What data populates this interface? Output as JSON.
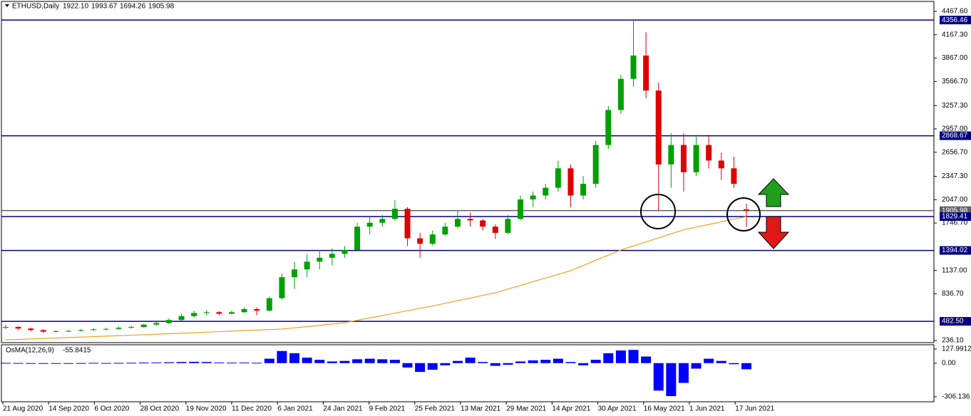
{
  "chart_data": {
    "type": "candlestick",
    "symbol": "ETHUSD,Daily",
    "header_values": [
      "1922.10",
      "1993.67",
      "1694.26",
      "1905.98"
    ],
    "ylim": [
      236.1,
      4467.6
    ],
    "yticks": [
      {
        "value": 4467.6,
        "label": "4467.60"
      },
      {
        "value": 4167.3,
        "label": "4167.30"
      },
      {
        "value": 3867,
        "label": "3867.00"
      },
      {
        "value": 3566.7,
        "label": "3566.70"
      },
      {
        "value": 3257.3,
        "label": "3257.30"
      },
      {
        "value": 2957,
        "label": "2957.00"
      },
      {
        "value": 2656.7,
        "label": "2656.70"
      },
      {
        "value": 2347.3,
        "label": "2347.30"
      },
      {
        "value": 2047,
        "label": "2047.00"
      },
      {
        "value": 1746.7,
        "label": "1746.70"
      },
      {
        "value": 1137,
        "label": "1137.00"
      },
      {
        "value": 836.7,
        "label": "836.70"
      },
      {
        "value": 236.1,
        "label": "236.10"
      }
    ],
    "levels": [
      {
        "value": 4356.46,
        "label": "4356.46",
        "color": "#000080"
      },
      {
        "value": 2868.67,
        "label": "2868.67",
        "color": "#000080"
      },
      {
        "value": 1905.98,
        "label": "1905.98",
        "color": "#606060"
      },
      {
        "value": 1829.41,
        "label": "1829.41",
        "color": "#000080"
      },
      {
        "value": 1394.02,
        "label": "1394.02",
        "color": "#000080"
      },
      {
        "value": 482.5,
        "label": "482.50",
        "color": "#000080"
      }
    ],
    "up_color": "#00a000",
    "down_color": "#e00000",
    "ma_color": "#f0a020",
    "ohlc": [
      [
        400,
        440,
        380,
        410
      ],
      [
        410,
        420,
        370,
        390
      ],
      [
        390,
        400,
        355,
        370
      ],
      [
        370,
        380,
        330,
        350
      ],
      [
        350,
        370,
        340,
        355
      ],
      [
        355,
        375,
        345,
        360
      ],
      [
        360,
        385,
        350,
        370
      ],
      [
        370,
        395,
        360,
        380
      ],
      [
        380,
        400,
        370,
        385
      ],
      [
        385,
        415,
        375,
        400
      ],
      [
        400,
        425,
        390,
        410
      ],
      [
        410,
        450,
        400,
        440
      ],
      [
        440,
        475,
        430,
        460
      ],
      [
        460,
        520,
        450,
        500
      ],
      [
        500,
        580,
        490,
        550
      ],
      [
        550,
        620,
        530,
        590
      ],
      [
        590,
        630,
        560,
        600
      ],
      [
        600,
        615,
        560,
        580
      ],
      [
        580,
        620,
        570,
        600
      ],
      [
        600,
        660,
        590,
        640
      ],
      [
        640,
        660,
        560,
        620
      ],
      [
        620,
        800,
        610,
        780
      ],
      [
        780,
        1100,
        760,
        1050
      ],
      [
        1050,
        1250,
        900,
        1150
      ],
      [
        1150,
        1350,
        1050,
        1250
      ],
      [
        1250,
        1400,
        1150,
        1300
      ],
      [
        1300,
        1420,
        1200,
        1350
      ],
      [
        1350,
        1450,
        1300,
        1400
      ],
      [
        1400,
        1750,
        1380,
        1700
      ],
      [
        1700,
        1820,
        1600,
        1750
      ],
      [
        1750,
        1850,
        1700,
        1800
      ],
      [
        1800,
        2040,
        1780,
        1930
      ],
      [
        1930,
        1950,
        1450,
        1550
      ],
      [
        1550,
        1620,
        1300,
        1480
      ],
      [
        1480,
        1650,
        1460,
        1600
      ],
      [
        1600,
        1750,
        1580,
        1700
      ],
      [
        1700,
        1900,
        1680,
        1800
      ],
      [
        1800,
        1880,
        1700,
        1780
      ],
      [
        1780,
        1800,
        1650,
        1700
      ],
      [
        1700,
        1730,
        1540,
        1620
      ],
      [
        1620,
        1850,
        1600,
        1800
      ],
      [
        1800,
        2100,
        1780,
        2050
      ],
      [
        2050,
        2150,
        1950,
        2100
      ],
      [
        2100,
        2250,
        2050,
        2200
      ],
      [
        2200,
        2550,
        2150,
        2450
      ],
      [
        2450,
        2500,
        1950,
        2100
      ],
      [
        2100,
        2350,
        2050,
        2250
      ],
      [
        2250,
        2800,
        2200,
        2750
      ],
      [
        2750,
        3250,
        2700,
        3200
      ],
      [
        3200,
        3650,
        3150,
        3600
      ],
      [
        3600,
        4370,
        3500,
        3900
      ],
      [
        3900,
        4200,
        3350,
        3450
      ],
      [
        3450,
        3550,
        1900,
        2500
      ],
      [
        2500,
        2900,
        2200,
        2750
      ],
      [
        2750,
        2900,
        2150,
        2400
      ],
      [
        2400,
        2880,
        2350,
        2750
      ],
      [
        2750,
        2880,
        2450,
        2550
      ],
      [
        2550,
        2650,
        2300,
        2450
      ],
      [
        2450,
        2600,
        2200,
        2250
      ],
      [
        1922.1,
        1993.67,
        1694.26,
        1905.98
      ]
    ],
    "ma": [
      245,
      250,
      256,
      262,
      268,
      274,
      280,
      286,
      292,
      298,
      304,
      310,
      316,
      323,
      330,
      336,
      343,
      350,
      356,
      363,
      370,
      376,
      383,
      399,
      415,
      431,
      448,
      465,
      496,
      527,
      557,
      588,
      619,
      650,
      680,
      714,
      748,
      782,
      816,
      850,
      897,
      944,
      992,
      1039,
      1086,
      1134,
      1200,
      1267,
      1333,
      1400,
      1452,
      1504,
      1556,
      1608,
      1660,
      1694,
      1728,
      1762,
      1796,
      1829.41
    ],
    "xlabels": [
      "21 Aug 2020",
      "14 Sep 2020",
      "6 Oct 2020",
      "28 Oct 2020",
      "19 Nov 2020",
      "11 Dec 2020",
      "6 Jan 2021",
      "24 Jan 2021",
      "9 Feb 2021",
      "25 Feb 2021",
      "13 Mar 2021",
      "29 Mar 2021",
      "14 Apr 2021",
      "30 Apr 2021",
      "16 May 2021",
      "1 Jun 2021",
      "17 Jun 2021"
    ],
    "osma": {
      "name": "OsMA(12,26,9)",
      "color": "#0000ff",
      "ylim": [
        -306.136,
        127.9912
      ],
      "yticks": [
        {
          "value": 127.9912,
          "label": "127.9912"
        },
        {
          "value": 0,
          "label": "0.00"
        },
        {
          "value": -306.136,
          "label": "-306.136"
        }
      ],
      "values": [
        2,
        1,
        -2,
        -3,
        -2,
        0,
        1,
        2,
        1,
        2,
        3,
        5,
        6,
        8,
        10,
        12,
        10,
        6,
        4,
        5,
        3,
        40,
        110,
        90,
        50,
        30,
        15,
        20,
        35,
        40,
        35,
        30,
        -40,
        -80,
        -60,
        -20,
        20,
        50,
        10,
        -25,
        -15,
        15,
        25,
        30,
        40,
        10,
        -20,
        30,
        90,
        115,
        120,
        60,
        -250,
        -300,
        -180,
        -50,
        40,
        20,
        -10,
        -55.8415
      ]
    }
  }
}
